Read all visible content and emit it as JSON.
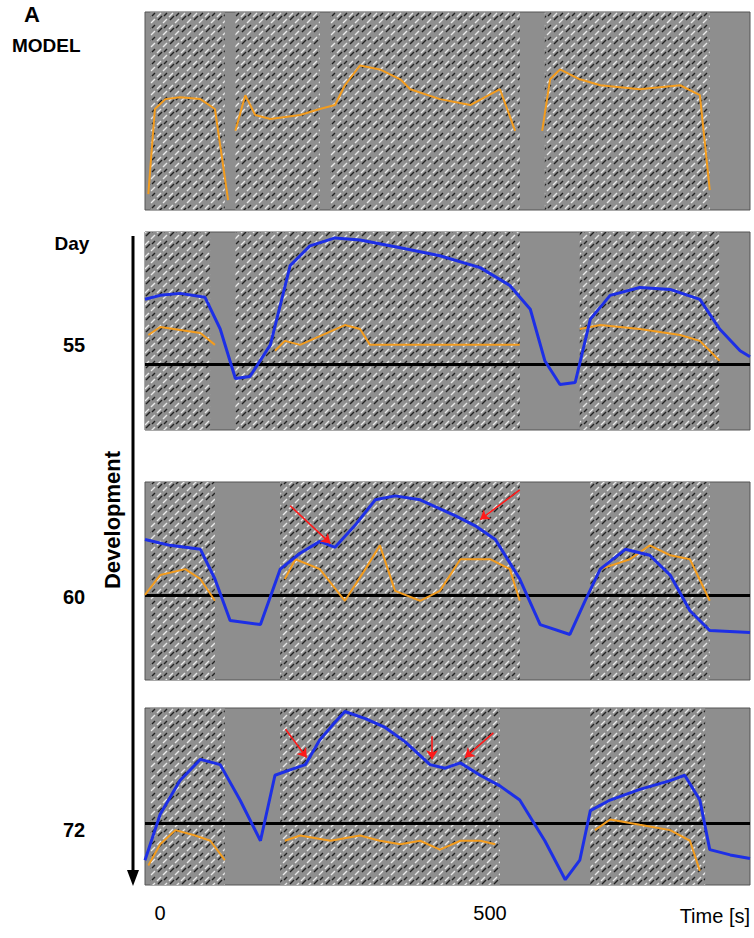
{
  "chart_data": {
    "type": "line",
    "panel_letter": "A",
    "development_label": "Development",
    "day_header": "Day",
    "xlabel": "Time [s]",
    "xlim": [
      -23,
      894
    ],
    "xticks": [
      0,
      500
    ],
    "tick_labels": "x",
    "grid": false,
    "panels": [
      {
        "label": "MODEL",
        "ylim": [
          0,
          100
        ],
        "syllables": [
          [
            -15,
            98
          ],
          [
            114,
            242
          ],
          [
            258,
            545
          ],
          [
            583,
            833
          ]
        ],
        "series": [
          {
            "color": "#f39c1e",
            "x": [
              -18,
              -8,
              8,
              30,
              61,
              83,
              103,
              null,
              114,
              129,
              144,
              167,
              212,
              242,
              265,
              280,
              303,
              333,
              364,
              379,
              424,
              470,
              515,
              538,
              null,
              579,
              591,
              606,
              636,
              667,
              727,
              788,
              818,
              833
            ],
            "values": [
              8,
              51,
              56,
              57,
              56,
              51,
              5,
              null,
              40,
              58,
              48,
              46,
              48,
              51,
              53,
              63,
              73,
              71,
              66,
              61,
              56,
              53,
              61,
              40,
              null,
              40,
              66,
              71,
              66,
              63,
              61,
              63,
              58,
              10
            ]
          }
        ],
        "arrows": []
      },
      {
        "label": "55",
        "ylim": [
          0,
          100
        ],
        "threshold": 33,
        "syllables": [
          [
            -23,
            76
          ],
          [
            114,
            545
          ],
          [
            636,
            848
          ]
        ],
        "series": [
          {
            "color": "#1d2fe6",
            "x": [
              -23,
              0,
              30,
              68,
              91,
              114,
              136,
              167,
              197,
              227,
              265,
              303,
              364,
              424,
              485,
              530,
              561,
              583,
              606,
              629,
              652,
              682,
              727,
              773,
              818,
              848,
              879,
              894
            ],
            "values": [
              66,
              68,
              69,
              67,
              51,
              26,
              27,
              43,
              83,
              93,
              97,
              96,
              92,
              88,
              82,
              73,
              61,
              35,
              23,
              24,
              56,
              68,
              72,
              71,
              66,
              51,
              40,
              37
            ]
          },
          {
            "color": "#f39c1e",
            "x": [
              -18,
              0,
              61,
              83,
              null,
              174,
              189,
              212,
              280,
              303,
              318,
              364,
              455,
              545,
              null,
              636,
              667,
              727,
              788,
              818,
              848
            ],
            "values": [
              48,
              52,
              49,
              43,
              null,
              40,
              45,
              43,
              53,
              51,
              43,
              43,
              43,
              43,
              null,
              51,
              53,
              51,
              48,
              45,
              35
            ]
          }
        ],
        "arrows": []
      },
      {
        "label": "60",
        "ylim": [
          0,
          100
        ],
        "threshold": 43,
        "syllables": [
          [
            -15,
            83
          ],
          [
            182,
            545
          ],
          [
            652,
            833
          ]
        ],
        "series": [
          {
            "color": "#1d2fe6",
            "x": [
              -23,
              15,
              61,
              83,
              106,
              152,
              182,
              212,
              242,
              265,
              295,
              326,
              356,
              394,
              447,
              477,
              508,
              545,
              576,
              621,
              644,
              667,
              705,
              742,
              773,
              803,
              833,
              894
            ],
            "values": [
              71,
              68,
              66,
              51,
              30,
              28,
              56,
              64,
              70,
              67,
              78,
              91,
              93,
              91,
              83,
              78,
              71,
              51,
              28,
              23,
              40,
              56,
              66,
              63,
              53,
              35,
              25,
              24
            ]
          },
          {
            "color": "#f39c1e",
            "x": [
              -23,
              0,
              38,
              61,
              83,
              null,
              189,
              205,
              242,
              280,
              311,
              333,
              356,
              394,
              424,
              455,
              500,
              530,
              545,
              null,
              652,
              667,
              712,
              742,
              773,
              803,
              833
            ],
            "values": [
              43,
              53,
              56,
              51,
              40,
              null,
              51,
              61,
              56,
              40,
              56,
              68,
              45,
              40,
              45,
              61,
              61,
              56,
              40,
              null,
              45,
              56,
              61,
              68,
              63,
              61,
              40
            ]
          }
        ],
        "arrows": [
          {
            "from": [
              197,
              88
            ],
            "to": [
              258,
              69
            ]
          },
          {
            "from": [
              545,
              96
            ],
            "to": [
              485,
              81
            ]
          }
        ]
      },
      {
        "label": "72",
        "ylim": [
          0,
          100
        ],
        "threshold": 35,
        "syllables": [
          [
            -15,
            98
          ],
          [
            182,
            515
          ],
          [
            652,
            826
          ]
        ],
        "series": [
          {
            "color": "#1d2fe6",
            "x": [
              -23,
              0,
              30,
              61,
              91,
              121,
              152,
              174,
              197,
              220,
              242,
              265,
              280,
              311,
              341,
              371,
              409,
              432,
              455,
              485,
              515,
              545,
              583,
              614,
              636,
              652,
              682,
              727,
              773,
              795,
              818,
              833,
              864,
              894
            ],
            "values": [
              14,
              40,
              59,
              71,
              68,
              48,
              25,
              62,
              65,
              68,
              82,
              92,
              98,
              94,
              89,
              81,
              68,
              66,
              69,
              62,
              56,
              48,
              25,
              3,
              14,
              42,
              48,
              54,
              59,
              62,
              48,
              20,
              17,
              15
            ]
          },
          {
            "color": "#f39c1e",
            "x": [
              -18,
              0,
              23,
              53,
              76,
              98,
              null,
              189,
              212,
              258,
              303,
              333,
              364,
              394,
              424,
              455,
              485,
              508,
              null,
              659,
              682,
              727,
              773,
              803,
              818
            ],
            "values": [
              11,
              23,
              31,
              28,
              25,
              14,
              null,
              25,
              28,
              25,
              28,
              25,
              23,
              25,
              20,
              25,
              25,
              23,
              null,
              31,
              37,
              34,
              31,
              25,
              8
            ]
          }
        ],
        "arrows": [
          {
            "from": [
              190,
              88
            ],
            "to": [
              222,
              72
            ]
          },
          {
            "from": [
              412,
              84
            ],
            "to": [
              412,
              71
            ]
          },
          {
            "from": [
              505,
              86
            ],
            "to": [
              462,
              72
            ]
          }
        ]
      }
    ]
  }
}
